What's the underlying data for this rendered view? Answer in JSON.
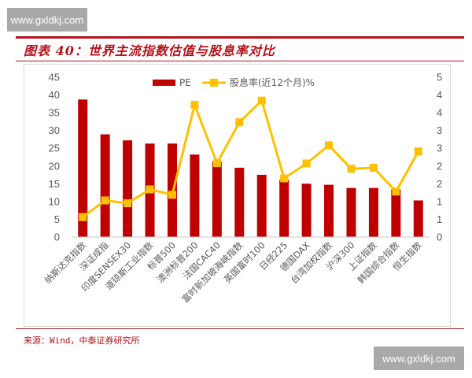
{
  "watermark": {
    "top": "www.gxldkj.com",
    "bottom": "www.gxldkj.com"
  },
  "figure": {
    "title": "图表 40：世界主流指数估值与股息率对比",
    "source": "来源：Wind，中泰证券研究所"
  },
  "colors": {
    "bar": "#c00000",
    "line": "#ffc000",
    "accent": "#b3121a",
    "axis": "#d9d9d9",
    "tick_text": "#595959"
  },
  "chart_data": {
    "type": "bar+line",
    "title": "世界主流指数估值与股息率对比",
    "categories": [
      "纳斯达克指数",
      "深证成指",
      "印度SENSEX30",
      "道琼斯工业指数",
      "标普500",
      "澳洲标普200",
      "法国CAC40",
      "富时新加坡海峡指数",
      "英国富时100",
      "日经225",
      "德国DAX",
      "台湾加权指数",
      "沪深300",
      "上证指数",
      "韩国综合指数",
      "恒生指数"
    ],
    "series": [
      {
        "name": "PE",
        "type": "bar",
        "axis": "left",
        "values": [
          38.6,
          28.8,
          27.1,
          26.2,
          26.2,
          23.1,
          21.1,
          19.4,
          17.4,
          16.0,
          14.9,
          14.6,
          13.7,
          13.7,
          13.3,
          10.2
        ]
      },
      {
        "name": "股息率(近12个月)%",
        "type": "line",
        "axis": "right",
        "values": [
          0.55,
          1.02,
          0.94,
          1.33,
          1.18,
          3.71,
          2.07,
          3.22,
          3.83,
          1.64,
          2.06,
          2.57,
          1.91,
          1.94,
          1.27,
          2.4
        ]
      }
    ],
    "legend": [
      "PE",
      "股息率(近12个月)%"
    ],
    "legend_position": "top",
    "left_axis": {
      "ylim": [
        0,
        45
      ],
      "ticks": [
        "0",
        "5",
        "10",
        "15",
        "20",
        "25",
        "30",
        "35",
        "40",
        "45"
      ]
    },
    "right_axis": {
      "ylim": [
        0,
        4.5
      ],
      "ticks": [
        "0",
        "1",
        "1",
        "2",
        "2",
        "3",
        "3",
        "4",
        "4",
        "5"
      ]
    },
    "xlabel": "",
    "ylabel": "",
    "grid": false
  }
}
